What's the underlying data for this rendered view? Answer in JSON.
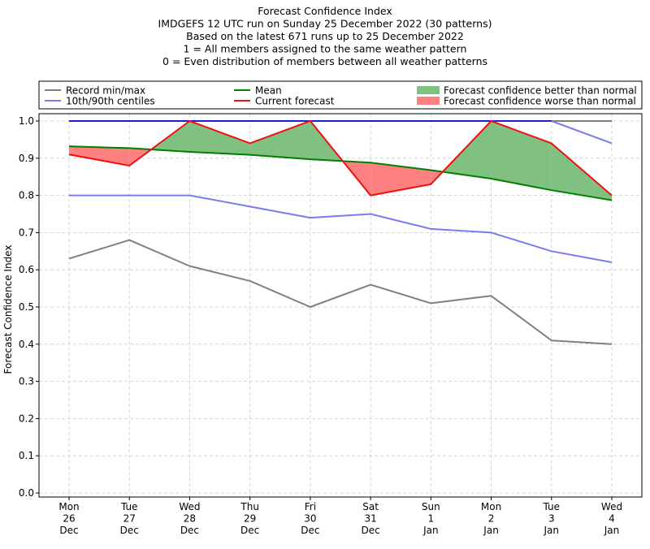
{
  "chart_data": {
    "type": "line",
    "title_lines": [
      "Forecast Confidence Index",
      "IMDGEFS 12 UTC run on Sunday 25 December 2022 (30 patterns)",
      "Based on the latest 671 runs up to 25 December 2022",
      "1 = All members assigned to the same weather pattern",
      "0 = Even distribution of members between all weather patterns"
    ],
    "ylabel": "Forecast Confidence Index",
    "ylim": [
      0,
      1.0
    ],
    "yticks": [
      "0.0",
      "0.1",
      "0.2",
      "0.3",
      "0.4",
      "0.5",
      "0.6",
      "0.7",
      "0.8",
      "0.9",
      "1.0"
    ],
    "grid": true,
    "legend_placement": "top",
    "categories": [
      [
        "Mon",
        "26",
        "Dec"
      ],
      [
        "Tue",
        "27",
        "Dec"
      ],
      [
        "Wed",
        "28",
        "Dec"
      ],
      [
        "Thu",
        "29",
        "Dec"
      ],
      [
        "Fri",
        "30",
        "Dec"
      ],
      [
        "Sat",
        "31",
        "Dec"
      ],
      [
        "Sun",
        "1",
        "Jan"
      ],
      [
        "Mon",
        "2",
        "Jan"
      ],
      [
        "Tue",
        "3",
        "Jan"
      ],
      [
        "Wed",
        "4",
        "Jan"
      ]
    ],
    "legend": [
      {
        "label": "Record min/max",
        "kind": "line",
        "color": "#808080"
      },
      {
        "label": "Mean",
        "kind": "line",
        "color": "#008000"
      },
      {
        "label": "Forecast confidence better than normal",
        "kind": "patch",
        "color": "#80c080"
      },
      {
        "label": "10th/90th centiles",
        "kind": "line",
        "color": "#7b7bf0"
      },
      {
        "label": "Current forecast",
        "kind": "line",
        "color": "#ee1111"
      },
      {
        "label": "Forecast confidence worse than normal",
        "kind": "patch",
        "color": "#ff8080"
      }
    ],
    "series": {
      "record_min": [
        0.63,
        0.68,
        0.61,
        0.57,
        0.5,
        0.56,
        0.51,
        0.53,
        0.41,
        0.4
      ],
      "record_max": [
        1.0,
        1.0,
        1.0,
        1.0,
        1.0,
        1.0,
        1.0,
        1.0,
        1.0,
        1.0
      ],
      "p10": [
        0.8,
        0.8,
        0.8,
        0.77,
        0.74,
        0.75,
        0.71,
        0.7,
        0.65,
        0.62
      ],
      "p90": [
        1.0,
        1.0,
        1.0,
        1.0,
        1.0,
        1.0,
        1.0,
        1.0,
        1.0,
        0.94
      ],
      "mean": [
        0.932,
        0.927,
        0.917,
        0.909,
        0.897,
        0.888,
        0.868,
        0.845,
        0.814,
        0.787
      ],
      "current": [
        0.91,
        0.88,
        1.0,
        0.94,
        1.0,
        0.8,
        0.83,
        1.0,
        0.94,
        0.8
      ]
    },
    "colors": {
      "record": "#808080",
      "centiles": "#7b7bf0",
      "max_line": "#1f1fd0",
      "mean": "#008000",
      "current": "#ee1111",
      "better_fill": "#80c080",
      "worse_fill": "#ff8080",
      "grid": "#cccccc"
    }
  }
}
